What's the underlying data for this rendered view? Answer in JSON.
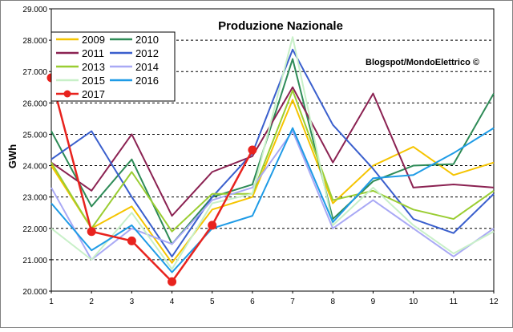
{
  "chart_data": {
    "type": "line",
    "title": "Produzione Nazionale",
    "annotation": "Blogspot/MondoElettrico ©",
    "ylabel": "GWh",
    "xlabel": "",
    "x": [
      1,
      2,
      3,
      4,
      5,
      6,
      7,
      8,
      9,
      10,
      11,
      12
    ],
    "xticks": [
      "1",
      "2",
      "3",
      "4",
      "5",
      "6",
      "7",
      "8",
      "9",
      "10",
      "11",
      "12"
    ],
    "ylim": [
      20000,
      29000
    ],
    "yticks": [
      "20.000",
      "21.000",
      "22.000",
      "23.000",
      "24.000",
      "25.000",
      "26.000",
      "27.000",
      "28.000",
      "29.000"
    ],
    "ytick_values": [
      20000,
      21000,
      22000,
      23000,
      24000,
      25000,
      26000,
      27000,
      28000,
      29000
    ],
    "grid": "horizontal dashed",
    "legend_position": "top-left",
    "series": [
      {
        "name": "2009",
        "color": "#f5c400",
        "values": [
          24000,
          22000,
          22700,
          20900,
          22600,
          23000,
          26100,
          22800,
          24000,
          24600,
          23700,
          24100
        ]
      },
      {
        "name": "2010",
        "color": "#2e8b57",
        "values": [
          25100,
          22700,
          24200,
          21500,
          23000,
          23400,
          27400,
          22300,
          23500,
          24000,
          24050,
          26300
        ]
      },
      {
        "name": "2011",
        "color": "#8b2252",
        "values": [
          24100,
          23200,
          25000,
          22400,
          23800,
          24300,
          26500,
          24100,
          26300,
          23300,
          23400,
          23300
        ]
      },
      {
        "name": "2012",
        "color": "#3a5fcd",
        "values": [
          24200,
          25100,
          23000,
          21100,
          23000,
          24400,
          27700,
          25300,
          23900,
          22300,
          21850,
          23100
        ]
      },
      {
        "name": "2013",
        "color": "#9acd32",
        "values": [
          24100,
          22000,
          23800,
          21900,
          23100,
          23100,
          26400,
          22900,
          23200,
          22600,
          22300,
          23200
        ]
      },
      {
        "name": "2014",
        "color": "#a9a9f5",
        "values": [
          23300,
          21000,
          22000,
          21500,
          22900,
          23300,
          25100,
          22000,
          22900,
          22000,
          21100,
          22000
        ]
      },
      {
        "name": "2015",
        "color": "#c8f0c8",
        "values": [
          22000,
          21000,
          22500,
          20700,
          22800,
          23100,
          28100,
          22100,
          23300,
          22100,
          21200,
          21900
        ]
      },
      {
        "name": "2016",
        "color": "#1e9be6",
        "values": [
          22800,
          21300,
          22100,
          20600,
          22000,
          22400,
          25200,
          22200,
          23600,
          23700,
          24400,
          25200
        ]
      },
      {
        "name": "2017",
        "color": "#e8231e",
        "marker": "circle",
        "values": [
          26800,
          21900,
          21600,
          20300,
          22100,
          24500,
          null,
          null,
          null,
          null,
          null,
          null
        ]
      }
    ]
  }
}
